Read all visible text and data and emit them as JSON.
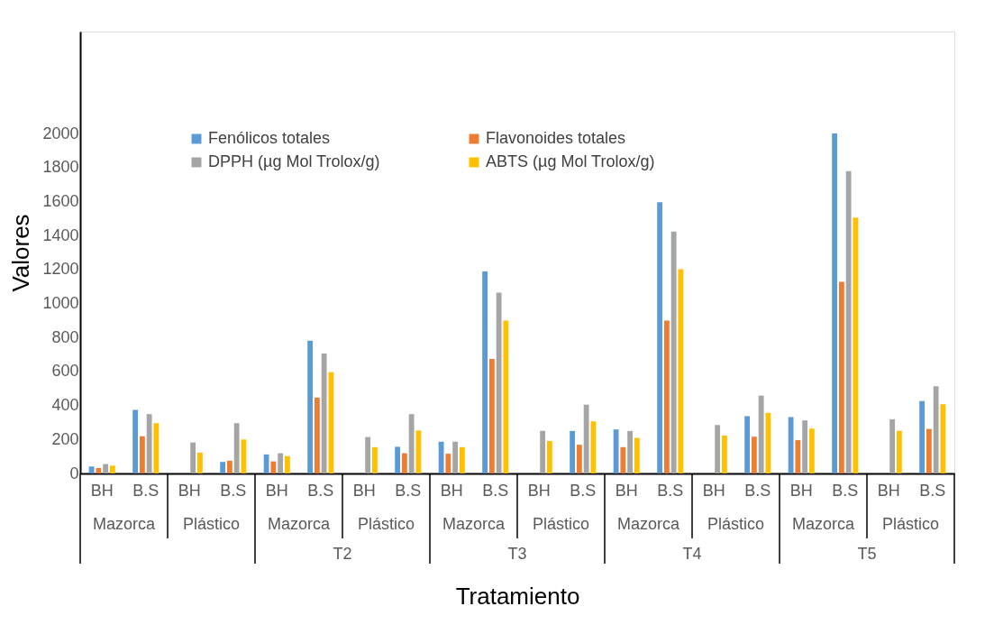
{
  "chart_data": {
    "type": "bar",
    "xlabel": "Tratamiento",
    "ylabel": "Valores",
    "categories": [
      "BH",
      "B.S",
      "BH",
      "B.S",
      "BH",
      "B.S",
      "BH",
      "B.S",
      "BH",
      "B.S",
      "BH",
      "B.S",
      "BH",
      "B.S",
      "BH",
      "B.S",
      "BH",
      "B.S",
      "BH",
      "B.S"
    ],
    "series": [
      {
        "name": "Fenólicos totales",
        "color": "#5b9bd5",
        "values": [
          41,
          374,
          0,
          68,
          112,
          781,
          0,
          157,
          187,
          1189,
          0,
          250,
          259,
          1596,
          0,
          337,
          332,
          2000,
          0,
          426
        ]
      },
      {
        "name": "Flavonoides totales",
        "color": "#ed7d31",
        "values": [
          32,
          219,
          null,
          75,
          71,
          446,
          null,
          119,
          116,
          674,
          null,
          169,
          155,
          900,
          null,
          216,
          196,
          1127,
          null,
          262
        ]
      },
      {
        "name": "DPPH (µg Mol Trolox/g)",
        "color": "#a5a5a5",
        "values": [
          55,
          349,
          182,
          296,
          119,
          706,
          214,
          349,
          187,
          1064,
          251,
          405,
          250,
          1423,
          285,
          458,
          312,
          1779,
          319,
          513
        ]
      },
      {
        "name": "ABTS (µg Mol Trolox/g)",
        "color": "#ffc000",
        "values": [
          46,
          296,
          123,
          200,
          102,
          596,
          155,
          253,
          155,
          900,
          191,
          307,
          209,
          1202,
          223,
          357,
          264,
          1505,
          251,
          407
        ]
      }
    ],
    "annotations": [
      "Mazorca",
      "Plástico",
      "Mazorca",
      "Plástico",
      "Mazorca",
      "Plástico",
      "Mazorca",
      "Plástico",
      "Mazorca",
      "Plástico",
      "T2",
      "T3",
      "T4",
      "T5"
    ],
    "ylim": [
      0,
      2600
    ],
    "yticks": [
      0,
      200,
      400,
      600,
      800,
      1000,
      1200,
      1400,
      1600,
      1800,
      2000
    ],
    "grid": false,
    "legend": "top"
  }
}
